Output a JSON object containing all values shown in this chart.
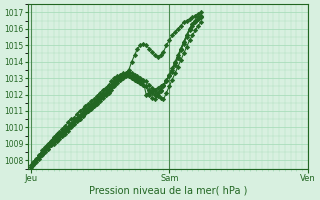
{
  "background_color": "#d8f0e0",
  "grid_color": "#aaddbb",
  "line_color": "#226622",
  "marker_color": "#226622",
  "title": "Pression niveau de la mer( hPa )",
  "xlabel_day_labels": [
    "Jeu",
    "Sam",
    "Ven"
  ],
  "ylim": [
    1007.5,
    1017.5
  ],
  "yticks": [
    1008,
    1009,
    1010,
    1011,
    1012,
    1013,
    1014,
    1015,
    1016,
    1017
  ],
  "day_positions": [
    0,
    48,
    96
  ],
  "total_points": 120,
  "series": [
    [
      1007.6,
      1007.8,
      1008.0,
      1008.2,
      1008.4,
      1008.6,
      1008.7,
      1008.9,
      1009.0,
      1009.2,
      1009.4,
      1009.5,
      1009.6,
      1009.8,
      1010.0,
      1010.2,
      1010.4,
      1010.5,
      1010.7,
      1010.9,
      1011.0,
      1011.1,
      1011.3,
      1011.4,
      1011.6,
      1011.8,
      1012.0,
      1012.1,
      1012.3,
      1012.5,
      1012.7,
      1012.9,
      1013.0,
      1013.1,
      1013.2,
      1013.1,
      1013.0,
      1013.0,
      1012.9,
      1012.8,
      1012.0,
      1012.1,
      1012.2,
      1012.3,
      1012.4,
      1012.5,
      1012.6,
      1012.8,
      1013.2,
      1013.5,
      1013.9,
      1014.3,
      1014.8,
      1015.2,
      1015.6,
      1016.0,
      1016.3,
      1016.5,
      1016.6,
      1016.7
    ],
    [
      1007.6,
      1007.8,
      1008.1,
      1008.3,
      1008.5,
      1008.7,
      1008.9,
      1009.1,
      1009.3,
      1009.5,
      1009.6,
      1009.7,
      1009.9,
      1010.0,
      1010.2,
      1010.4,
      1010.6,
      1010.7,
      1010.9,
      1011.1,
      1011.2,
      1011.4,
      1011.5,
      1011.7,
      1011.9,
      1012.1,
      1012.3,
      1012.5,
      1012.6,
      1012.8,
      1013.0,
      1013.1,
      1013.2,
      1013.2,
      1013.1,
      1013.0,
      1012.9,
      1012.8,
      1012.7,
      1012.6,
      1012.5,
      1012.0,
      1011.8,
      1011.7,
      1011.9,
      1012.2,
      1012.5,
      1012.8,
      1013.1,
      1013.4,
      1013.8,
      1014.2,
      1014.7,
      1015.1,
      1015.5,
      1015.9,
      1016.2,
      1016.4,
      1016.6,
      1016.7
    ],
    [
      1007.7,
      1007.9,
      1008.1,
      1008.3,
      1008.6,
      1008.8,
      1009.0,
      1009.2,
      1009.4,
      1009.6,
      1009.7,
      1009.9,
      1010.1,
      1010.3,
      1010.5,
      1010.6,
      1010.8,
      1011.0,
      1011.1,
      1011.3,
      1011.4,
      1011.6,
      1011.7,
      1011.9,
      1012.1,
      1012.3,
      1012.4,
      1012.6,
      1012.8,
      1013.0,
      1013.1,
      1013.2,
      1013.3,
      1013.2,
      1013.1,
      1013.0,
      1012.9,
      1012.8,
      1012.7,
      1012.6,
      1012.5,
      1012.3,
      1012.1,
      1012.0,
      1012.1,
      1012.3,
      1012.6,
      1012.9,
      1013.2,
      1013.6,
      1014.0,
      1014.4,
      1014.8,
      1015.2,
      1015.6,
      1016.0,
      1016.3,
      1016.5,
      1016.7,
      1016.8
    ],
    [
      1007.5,
      1007.7,
      1007.9,
      1008.1,
      1008.3,
      1008.5,
      1008.7,
      1008.9,
      1009.1,
      1009.2,
      1009.3,
      1009.5,
      1009.7,
      1009.9,
      1010.1,
      1010.2,
      1010.4,
      1010.5,
      1010.7,
      1010.9,
      1011.0,
      1011.2,
      1011.3,
      1011.5,
      1011.7,
      1011.9,
      1012.0,
      1012.2,
      1012.4,
      1012.6,
      1012.8,
      1012.9,
      1013.1,
      1013.3,
      1013.4,
      1013.3,
      1013.2,
      1013.1,
      1013.0,
      1012.9,
      1012.8,
      1012.6,
      1012.4,
      1012.2,
      1012.0,
      1011.8,
      1011.7,
      1012.1,
      1012.5,
      1012.9,
      1013.3,
      1013.7,
      1014.1,
      1014.5,
      1014.9,
      1015.3,
      1015.6,
      1015.9,
      1016.2,
      1016.4
    ],
    [
      1007.6,
      1007.8,
      1008.0,
      1008.2,
      1008.4,
      1008.6,
      1008.8,
      1009.0,
      1009.1,
      1009.3,
      1009.5,
      1009.6,
      1009.8,
      1010.0,
      1010.2,
      1010.3,
      1010.5,
      1010.7,
      1010.8,
      1011.0,
      1011.1,
      1011.3,
      1011.4,
      1011.6,
      1011.8,
      1012.0,
      1012.1,
      1012.3,
      1012.5,
      1012.7,
      1012.8,
      1013.0,
      1013.2,
      1013.3,
      1013.5,
      1014.0,
      1014.4,
      1014.8,
      1015.0,
      1015.1,
      1015.0,
      1014.8,
      1014.6,
      1014.4,
      1014.3,
      1014.4,
      1014.6,
      1015.0,
      1015.3,
      1015.6,
      1015.8,
      1016.0,
      1016.2,
      1016.4,
      1016.5,
      1016.6,
      1016.7,
      1016.8,
      1016.9,
      1017.0
    ]
  ]
}
